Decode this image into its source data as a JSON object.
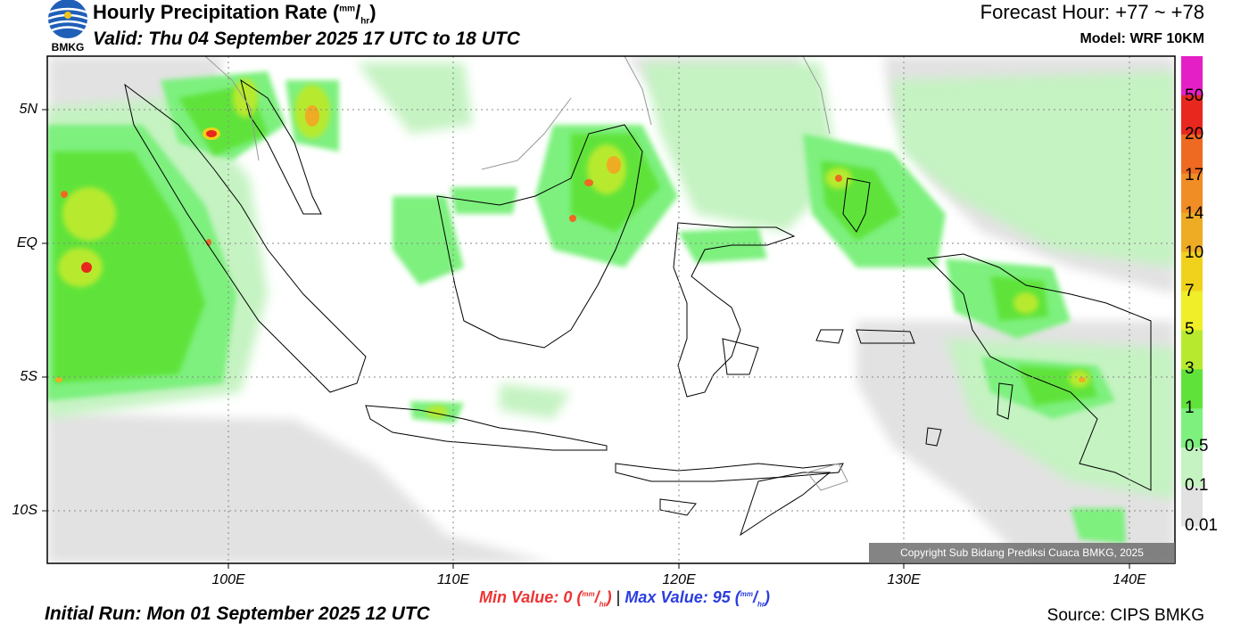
{
  "header": {
    "title_main": "Hourly Precipitation Rate (",
    "title_unit_sup": "mm",
    "title_unit_slash": "/",
    "title_unit_sub": "hr",
    "title_close": ")",
    "valid": "Valid: Thu 04 September 2025 17 UTC to 18 UTC",
    "forecast_hour": "Forecast Hour: +77 ~ +78",
    "model": "Model: WRF 10KM",
    "logo_text": "BMKG"
  },
  "footer": {
    "initial_run": "Initial Run: Mon 01 September 2025 12 UTC",
    "source": "Source: CIPS BMKG",
    "min_label": "Min Value:",
    "min_value": "0",
    "max_label": "Max Value:",
    "max_value": "95",
    "unit_sup": "mm",
    "unit_slash": "/",
    "unit_sub": "hr",
    "separator": "|",
    "copyright": "Copyright Sub Bidang Prediksi Cuaca BMKG, 2025"
  },
  "map": {
    "lat_labels": [
      "5N",
      "EQ",
      "5S",
      "10S"
    ],
    "lon_labels": [
      "100E",
      "110E",
      "120E",
      "130E",
      "140E"
    ],
    "lat_range": [
      -12,
      7
    ],
    "lon_range": [
      92,
      142
    ]
  },
  "colorbar": {
    "labels": [
      "50",
      "20",
      "17",
      "14",
      "10",
      "7",
      "5",
      "3",
      "1",
      "0.5",
      "0.1",
      "0.01"
    ],
    "colors": [
      "#e51fc6",
      "#e8281e",
      "#ee6a22",
      "#f08e25",
      "#eeac24",
      "#f0d21c",
      "#efee28",
      "#b7ea2f",
      "#5fe33b",
      "#7df07e",
      "#c5f3c2",
      "#e2e2e2"
    ]
  }
}
